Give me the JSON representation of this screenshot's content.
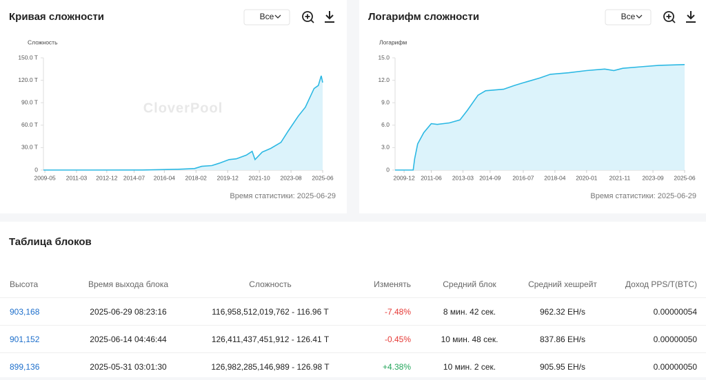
{
  "chart_data": [
    {
      "type": "area",
      "title": "Кривая сложности",
      "range_select": "Все",
      "ylabel": "Сложность",
      "watermark": "CloverPool",
      "footnote": "Время статистики: 2025-06-29",
      "color": "#2bb8e3",
      "fill": "#dcf3fb",
      "grid": false,
      "x": [
        "2009-04",
        "2012-01",
        "2015-01",
        "2017-01",
        "2018-01",
        "2018-06",
        "2019-01",
        "2019-06",
        "2020-01",
        "2020-06",
        "2021-01",
        "2021-05",
        "2021-07",
        "2021-12",
        "2022-06",
        "2023-01",
        "2023-06",
        "2024-01",
        "2024-06",
        "2024-12",
        "2025-03",
        "2025-05",
        "2025-06"
      ],
      "values": [
        0,
        0,
        0.1,
        1,
        2,
        5,
        6,
        9,
        14,
        15,
        20,
        25,
        14,
        24,
        29,
        37,
        52,
        72,
        84,
        109,
        113,
        126,
        117
      ],
      "xlim": [
        "2009-04",
        "2025-06"
      ],
      "xticks": [
        "2009-05",
        "2011-03",
        "2012-12",
        "2014-07",
        "2016-04",
        "2018-02",
        "2019-12",
        "2021-10",
        "2023-08",
        "2025-06"
      ],
      "ylim": [
        0,
        150
      ],
      "yticks": [
        0,
        {
          "value": 30,
          "label": "30.0 T"
        },
        {
          "value": 60,
          "label": "60.0 T"
        },
        {
          "value": 90,
          "label": "90.0 T"
        },
        {
          "value": 120,
          "label": "120.0 T"
        },
        {
          "value": 150,
          "label": "150.0 T"
        }
      ]
    },
    {
      "type": "area",
      "title": "Логарифм сложности",
      "range_select": "Все",
      "ylabel": "Логарифм",
      "watermark": "CloverPool",
      "footnote": "Время статистики: 2025-06-29",
      "color": "#2bb8e3",
      "fill": "#dcf3fb",
      "grid": false,
      "x": [
        "2009-06",
        "2010-06",
        "2010-07",
        "2010-09",
        "2011-01",
        "2011-06",
        "2011-10",
        "2012-06",
        "2013-01",
        "2013-06",
        "2014-01",
        "2014-06",
        "2015-06",
        "2016-01",
        "2016-06",
        "2017-06",
        "2018-01",
        "2019-01",
        "2020-01",
        "2021-01",
        "2021-07",
        "2022-01",
        "2023-01",
        "2024-01",
        "2025-06"
      ],
      "values": [
        0,
        0,
        1.5,
        3.5,
        5,
        6.2,
        6.1,
        6.3,
        6.7,
        8,
        10,
        10.6,
        10.8,
        11.3,
        11.6,
        12.3,
        12.8,
        13,
        13.3,
        13.5,
        13.3,
        13.6,
        13.8,
        14,
        14.1
      ],
      "xlim": [
        "2009-06",
        "2025-06"
      ],
      "xticks": [
        "2009-12",
        "2011-06",
        "2013-03",
        "2014-09",
        "2016-07",
        "2018-04",
        "2020-01",
        "2021-11",
        "2023-09",
        "2025-06"
      ],
      "ylim": [
        0,
        15
      ],
      "yticks": [
        0,
        {
          "value": 3,
          "label": "3.0"
        },
        {
          "value": 6,
          "label": "6.0"
        },
        {
          "value": 9,
          "label": "9.0"
        },
        {
          "value": 12,
          "label": "12.0"
        },
        {
          "value": 15,
          "label": "15.0"
        }
      ]
    }
  ],
  "table": {
    "title": "Таблица блоков",
    "columns": [
      "Высота",
      "Время выхода блока",
      "Сложность",
      "Изменять",
      "Средний блок",
      "Средний хешрейт",
      "Доход PPS/T(BTC)"
    ],
    "rows": [
      [
        "903,168",
        "2025-06-29 08:23:16",
        "116,958,512,019,762 - 116.96 T",
        "-7.48%",
        "8 мин. 42 сек.",
        "962.32 EH/s",
        "0.00000054"
      ],
      [
        "901,152",
        "2025-06-14 04:46:44",
        "126,411,437,451,912 - 126.41 T",
        "-0.45%",
        "10 мин. 48 сек.",
        "837.86 EH/s",
        "0.00000050"
      ],
      [
        "899,136",
        "2025-05-31 03:01:30",
        "126,982,285,146,989 - 126.98 T",
        "+4.38%",
        "10 мин. 2 сек.",
        "905.95 EH/s",
        "0.00000050"
      ]
    ]
  }
}
